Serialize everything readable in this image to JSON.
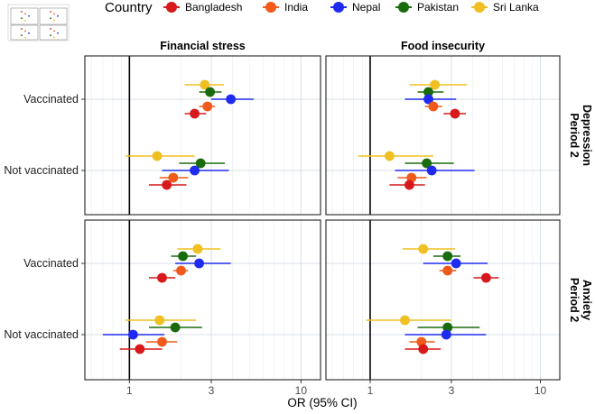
{
  "chart_data": {
    "type": "forest-plot",
    "xlabel": "OR (95% CI)",
    "xscale": "log",
    "xlim": [
      0.55,
      13
    ],
    "x_ticks": [
      1,
      3,
      10
    ],
    "reference_line": 1,
    "legend": {
      "title": "Country",
      "placement": "top",
      "entries": [
        {
          "name": "Bangladesh",
          "color": "#d7191c"
        },
        {
          "name": "India",
          "color": "#f05a1a"
        },
        {
          "name": "Nepal",
          "color": "#1f2bf0"
        },
        {
          "name": "Pakistan",
          "color": "#1a6b0e"
        },
        {
          "name": "Sri Lanka",
          "color": "#f0bf21"
        }
      ]
    },
    "columns": [
      "Financial stress",
      "Food insecurity"
    ],
    "rows": [
      {
        "label": "Period 2",
        "sublabel": "Depression"
      },
      {
        "label": "Period 2",
        "sublabel": "Anxiety"
      }
    ],
    "categories": [
      "Vaccinated",
      "Not vaccinated"
    ],
    "panels": [
      {
        "column": "Financial stress",
        "row": "Depression",
        "series": [
          {
            "category": "Vaccinated",
            "country": "Sri Lanka",
            "or": 2.75,
            "lo": 2.1,
            "hi": 3.55
          },
          {
            "category": "Vaccinated",
            "country": "Pakistan",
            "or": 2.95,
            "lo": 2.55,
            "hi": 3.45
          },
          {
            "category": "Vaccinated",
            "country": "Nepal",
            "or": 3.9,
            "lo": 3.0,
            "hi": 5.3
          },
          {
            "category": "Vaccinated",
            "country": "India",
            "or": 2.85,
            "lo": 2.55,
            "hi": 3.15
          },
          {
            "category": "Vaccinated",
            "country": "Bangladesh",
            "or": 2.4,
            "lo": 2.1,
            "hi": 2.8
          },
          {
            "category": "Not vaccinated",
            "country": "Sri Lanka",
            "or": 1.45,
            "lo": 0.95,
            "hi": 2.4
          },
          {
            "category": "Not vaccinated",
            "country": "Pakistan",
            "or": 2.6,
            "lo": 1.95,
            "hi": 3.6
          },
          {
            "category": "Not vaccinated",
            "country": "Nepal",
            "or": 2.4,
            "lo": 1.55,
            "hi": 3.8
          },
          {
            "category": "Not vaccinated",
            "country": "India",
            "or": 1.8,
            "lo": 1.5,
            "hi": 2.2
          },
          {
            "category": "Not vaccinated",
            "country": "Bangladesh",
            "or": 1.65,
            "lo": 1.3,
            "hi": 2.15
          }
        ]
      },
      {
        "column": "Food insecurity",
        "row": "Depression",
        "series": [
          {
            "category": "Vaccinated",
            "country": "Sri Lanka",
            "or": 2.4,
            "lo": 1.7,
            "hi": 3.7
          },
          {
            "category": "Vaccinated",
            "country": "Pakistan",
            "or": 2.2,
            "lo": 1.9,
            "hi": 2.7
          },
          {
            "category": "Vaccinated",
            "country": "Nepal",
            "or": 2.2,
            "lo": 1.6,
            "hi": 3.2
          },
          {
            "category": "Vaccinated",
            "country": "India",
            "or": 2.35,
            "lo": 2.1,
            "hi": 2.65
          },
          {
            "category": "Vaccinated",
            "country": "Bangladesh",
            "or": 3.15,
            "lo": 2.7,
            "hi": 3.65
          },
          {
            "category": "Not vaccinated",
            "country": "Sri Lanka",
            "or": 1.3,
            "lo": 0.85,
            "hi": 2.35
          },
          {
            "category": "Not vaccinated",
            "country": "Pakistan",
            "or": 2.15,
            "lo": 1.6,
            "hi": 3.1
          },
          {
            "category": "Not vaccinated",
            "country": "Nepal",
            "or": 2.3,
            "lo": 1.4,
            "hi": 4.1
          },
          {
            "category": "Not vaccinated",
            "country": "India",
            "or": 1.75,
            "lo": 1.45,
            "hi": 2.15
          },
          {
            "category": "Not vaccinated",
            "country": "Bangladesh",
            "or": 1.7,
            "lo": 1.3,
            "hi": 2.1
          }
        ]
      },
      {
        "column": "Financial stress",
        "row": "Anxiety",
        "series": [
          {
            "category": "Vaccinated",
            "country": "Sri Lanka",
            "or": 2.5,
            "lo": 1.9,
            "hi": 3.4
          },
          {
            "category": "Vaccinated",
            "country": "Pakistan",
            "or": 2.05,
            "lo": 1.75,
            "hi": 2.45
          },
          {
            "category": "Vaccinated",
            "country": "Nepal",
            "or": 2.55,
            "lo": 1.85,
            "hi": 3.9
          },
          {
            "category": "Vaccinated",
            "country": "India",
            "or": 2.0,
            "lo": 1.8,
            "hi": 2.2
          },
          {
            "category": "Vaccinated",
            "country": "Bangladesh",
            "or": 1.55,
            "lo": 1.3,
            "hi": 1.85
          },
          {
            "category": "Not vaccinated",
            "country": "Sri Lanka",
            "or": 1.5,
            "lo": 0.95,
            "hi": 2.45
          },
          {
            "category": "Not vaccinated",
            "country": "Pakistan",
            "or": 1.85,
            "lo": 1.3,
            "hi": 2.65
          },
          {
            "category": "Not vaccinated",
            "country": "Nepal",
            "or": 1.05,
            "lo": 0.7,
            "hi": 1.6
          },
          {
            "category": "Not vaccinated",
            "country": "India",
            "or": 1.55,
            "lo": 1.25,
            "hi": 1.9
          },
          {
            "category": "Not vaccinated",
            "country": "Bangladesh",
            "or": 1.15,
            "lo": 0.88,
            "hi": 1.55
          }
        ]
      },
      {
        "column": "Food insecurity",
        "row": "Anxiety",
        "series": [
          {
            "category": "Vaccinated",
            "country": "Sri Lanka",
            "or": 2.05,
            "lo": 1.55,
            "hi": 3.15
          },
          {
            "category": "Vaccinated",
            "country": "Pakistan",
            "or": 2.85,
            "lo": 2.35,
            "hi": 3.4
          },
          {
            "category": "Vaccinated",
            "country": "Nepal",
            "or": 3.2,
            "lo": 2.05,
            "hi": 4.9
          },
          {
            "category": "Vaccinated",
            "country": "India",
            "or": 2.85,
            "lo": 2.55,
            "hi": 3.2
          },
          {
            "category": "Vaccinated",
            "country": "Bangladesh",
            "or": 4.8,
            "lo": 4.05,
            "hi": 5.7
          },
          {
            "category": "Not vaccinated",
            "country": "Sri Lanka",
            "or": 1.6,
            "lo": 0.95,
            "hi": 3.0
          },
          {
            "category": "Not vaccinated",
            "country": "Pakistan",
            "or": 2.85,
            "lo": 1.9,
            "hi": 4.4
          },
          {
            "category": "Not vaccinated",
            "country": "Nepal",
            "or": 2.8,
            "lo": 1.6,
            "hi": 4.8
          },
          {
            "category": "Not vaccinated",
            "country": "India",
            "or": 2.0,
            "lo": 1.7,
            "hi": 2.4
          },
          {
            "category": "Not vaccinated",
            "country": "Bangladesh",
            "or": 2.05,
            "lo": 1.6,
            "hi": 2.6
          }
        ]
      }
    ]
  }
}
